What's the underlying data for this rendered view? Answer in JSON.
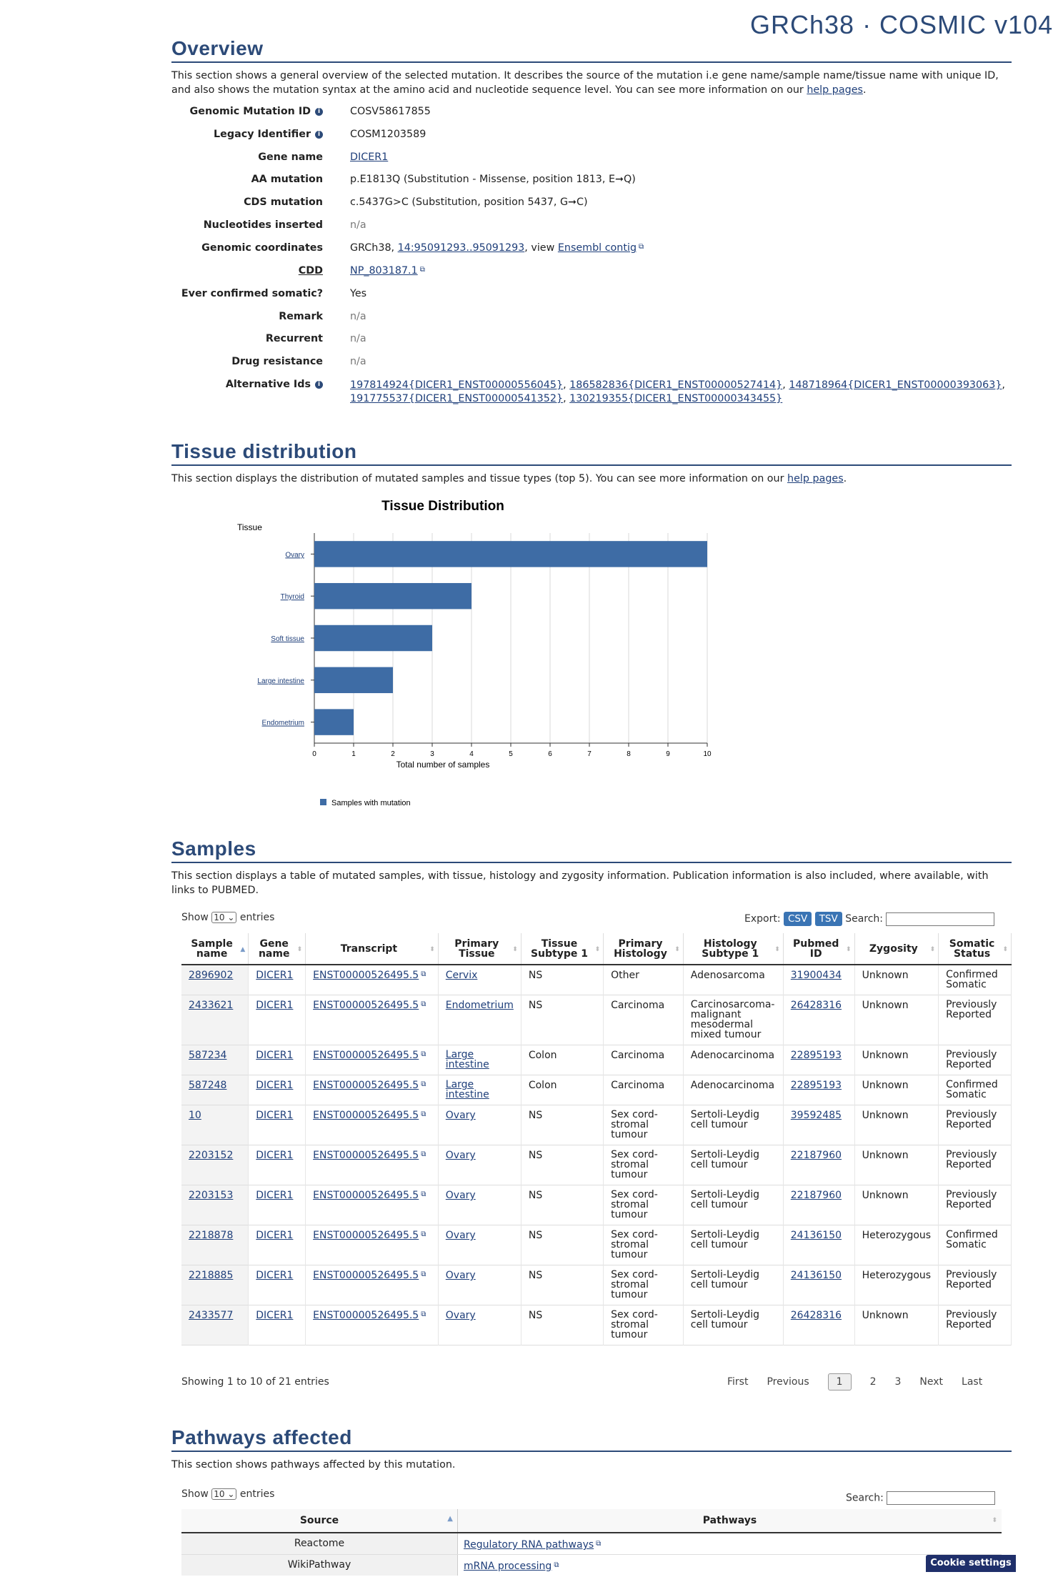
{
  "header": {
    "build": "GRCh38 · COSMIC v104"
  },
  "overview": {
    "title": "Overview",
    "description_pre": "This section shows a general overview of the selected mutation. It describes the source of the mutation i.e gene name/sample name/tissue name with unique ID, and also shows the mutation syntax at the amino acid and nucleotide sequence level. You can see more information on our ",
    "description_link": "help pages",
    "description_post": ".",
    "genomic_mutation_id": {
      "label": "Genomic Mutation ID",
      "value": "COSV58617855"
    },
    "legacy_identifier": {
      "label": "Legacy Identifier",
      "value": "COSM1203589"
    },
    "gene_name": {
      "label": "Gene name",
      "value": "DICER1"
    },
    "aa_mutation": {
      "label": "AA mutation",
      "value": "p.E1813Q (Substitution - Missense, position 1813, E➞Q)"
    },
    "cds_mutation": {
      "label": "CDS mutation",
      "value": "c.5437G>C (Substitution, position 5437, G➞C)"
    },
    "nucleotides_inserted": {
      "label": "Nucleotides inserted",
      "value": "n/a"
    },
    "genomic_coordinates": {
      "label": "Genomic coordinates",
      "prefix": "GRCh38, ",
      "coord_link": "14:95091293..95091293",
      "middle": ", view ",
      "ensembl_link": "Ensembl contig"
    },
    "cdd": {
      "label": "CDD",
      "value": "NP_803187.1"
    },
    "ever_confirmed_somatic": {
      "label": "Ever confirmed somatic?",
      "value": "Yes"
    },
    "remark": {
      "label": "Remark",
      "value": "n/a"
    },
    "recurrent": {
      "label": "Recurrent",
      "value": "n/a"
    },
    "drug_resistance": {
      "label": "Drug resistance",
      "value": "n/a"
    },
    "alternative_ids": {
      "label": "Alternative Ids",
      "ids": [
        "197814924{DICER1_ENST00000556045}",
        "186582836{DICER1_ENST00000527414}",
        "148718964{DICER1_ENST00000393063}",
        "191775537{DICER1_ENST00000541352}",
        "130219355{DICER1_ENST00000343455}"
      ]
    }
  },
  "tissue": {
    "title": "Tissue distribution",
    "description_pre": "This section displays the distribution of mutated samples and tissue types (top 5). You can see more information on our ",
    "description_link": "help pages",
    "description_post": "."
  },
  "chart_data": {
    "type": "bar",
    "orientation": "horizontal",
    "title": "Tissue Distribution",
    "ylabel": "Tissue",
    "xlabel": "Total number of samples",
    "categories": [
      "Ovary",
      "Thyroid",
      "Soft tissue",
      "Large intestine",
      "Endometrium"
    ],
    "series": [
      {
        "name": "Samples with mutation",
        "values": [
          10,
          4,
          3,
          2,
          1
        ]
      }
    ],
    "xlim": [
      0,
      10
    ],
    "xticks": [
      "0",
      "1",
      "2",
      "3",
      "4",
      "5",
      "6",
      "7",
      "8",
      "9",
      "10"
    ],
    "grid": true,
    "legend": "bottom-left",
    "bar_color": "#3e6ca5"
  },
  "samples": {
    "title": "Samples",
    "description": "This section displays a table of mutated samples, with tissue, histology and zygosity information. Publication information is also included, where available, with links to PUBMED.",
    "show_label": "Show",
    "entries_label": "entries",
    "page_size": "10",
    "export_label": "Export:",
    "csv_label": "CSV",
    "tsv_label": "TSV",
    "search_label": "Search:",
    "columns": [
      [
        "Sample",
        "name"
      ],
      [
        "Gene",
        "name"
      ],
      [
        "Transcript"
      ],
      [
        "Primary",
        "Tissue"
      ],
      [
        "Tissue",
        "Subtype 1"
      ],
      [
        "Primary",
        "Histology"
      ],
      [
        "Histology",
        "Subtype 1"
      ],
      [
        "Pubmed",
        "ID"
      ],
      [
        "Zygosity"
      ],
      [
        "Somatic",
        "Status"
      ]
    ],
    "rows": [
      {
        "sample": "2896902",
        "gene": "DICER1",
        "transcript": "ENST00000526495.5",
        "tissue": [
          "Cervix"
        ],
        "subtype": "NS",
        "histology": [
          "Other"
        ],
        "hist_subtype": [
          "Adenosarcoma"
        ],
        "pubmed": "31900434",
        "zygosity": "Unknown",
        "status": [
          "Confirmed",
          "Somatic"
        ]
      },
      {
        "sample": "2433621",
        "gene": "DICER1",
        "transcript": "ENST00000526495.5",
        "tissue": [
          "Endometrium"
        ],
        "subtype": "NS",
        "histology": [
          "Carcinoma"
        ],
        "hist_subtype": [
          "Carcinosarcoma-",
          "malignant",
          "mesodermal",
          "mixed tumour"
        ],
        "pubmed": "26428316",
        "zygosity": "Unknown",
        "status": [
          "Previously",
          "Reported"
        ]
      },
      {
        "sample": "587234",
        "gene": "DICER1",
        "transcript": "ENST00000526495.5",
        "tissue": [
          "Large",
          "intestine"
        ],
        "subtype": "Colon",
        "histology": [
          "Carcinoma"
        ],
        "hist_subtype": [
          "Adenocarcinoma"
        ],
        "pubmed": "22895193",
        "zygosity": "Unknown",
        "status": [
          "Previously",
          "Reported"
        ]
      },
      {
        "sample": "587248",
        "gene": "DICER1",
        "transcript": "ENST00000526495.5",
        "tissue": [
          "Large",
          "intestine"
        ],
        "subtype": "Colon",
        "histology": [
          "Carcinoma"
        ],
        "hist_subtype": [
          "Adenocarcinoma"
        ],
        "pubmed": "22895193",
        "zygosity": "Unknown",
        "status": [
          "Confirmed",
          "Somatic"
        ]
      },
      {
        "sample": "10",
        "gene": "DICER1",
        "transcript": "ENST00000526495.5",
        "tissue": [
          "Ovary"
        ],
        "subtype": "NS",
        "histology": [
          "Sex cord-",
          "stromal",
          "tumour"
        ],
        "hist_subtype": [
          "Sertoli-Leydig",
          "cell tumour"
        ],
        "pubmed": "39592485",
        "zygosity": "Unknown",
        "status": [
          "Previously",
          "Reported"
        ]
      },
      {
        "sample": "2203152",
        "gene": "DICER1",
        "transcript": "ENST00000526495.5",
        "tissue": [
          "Ovary"
        ],
        "subtype": "NS",
        "histology": [
          "Sex cord-",
          "stromal",
          "tumour"
        ],
        "hist_subtype": [
          "Sertoli-Leydig",
          "cell tumour"
        ],
        "pubmed": "22187960",
        "zygosity": "Unknown",
        "status": [
          "Previously",
          "Reported"
        ]
      },
      {
        "sample": "2203153",
        "gene": "DICER1",
        "transcript": "ENST00000526495.5",
        "tissue": [
          "Ovary"
        ],
        "subtype": "NS",
        "histology": [
          "Sex cord-",
          "stromal",
          "tumour"
        ],
        "hist_subtype": [
          "Sertoli-Leydig",
          "cell tumour"
        ],
        "pubmed": "22187960",
        "zygosity": "Unknown",
        "status": [
          "Previously",
          "Reported"
        ]
      },
      {
        "sample": "2218878",
        "gene": "DICER1",
        "transcript": "ENST00000526495.5",
        "tissue": [
          "Ovary"
        ],
        "subtype": "NS",
        "histology": [
          "Sex cord-",
          "stromal",
          "tumour"
        ],
        "hist_subtype": [
          "Sertoli-Leydig",
          "cell tumour"
        ],
        "pubmed": "24136150",
        "zygosity": "Heterozygous",
        "status": [
          "Confirmed",
          "Somatic"
        ]
      },
      {
        "sample": "2218885",
        "gene": "DICER1",
        "transcript": "ENST00000526495.5",
        "tissue": [
          "Ovary"
        ],
        "subtype": "NS",
        "histology": [
          "Sex cord-",
          "stromal",
          "tumour"
        ],
        "hist_subtype": [
          "Sertoli-Leydig",
          "cell tumour"
        ],
        "pubmed": "24136150",
        "zygosity": "Heterozygous",
        "status": [
          "Previously",
          "Reported"
        ]
      },
      {
        "sample": "2433577",
        "gene": "DICER1",
        "transcript": "ENST00000526495.5",
        "tissue": [
          "Ovary"
        ],
        "subtype": "NS",
        "histology": [
          "Sex cord-",
          "stromal",
          "tumour"
        ],
        "hist_subtype": [
          "Sertoli-Leydig",
          "cell tumour"
        ],
        "pubmed": "26428316",
        "zygosity": "Unknown",
        "status": [
          "Previously",
          "Reported"
        ]
      }
    ],
    "info": "Showing 1 to 10 of 21 entries",
    "pager": {
      "first": "First",
      "previous": "Previous",
      "pages": [
        "1",
        "2",
        "3"
      ],
      "current": "1",
      "next": "Next",
      "last": "Last"
    }
  },
  "pathways": {
    "title": "Pathways affected",
    "description": "This section shows pathways affected by this mutation.",
    "show_label": "Show",
    "entries_label": "entries",
    "page_size": "10",
    "search_label": "Search:",
    "columns": [
      "Source",
      "Pathways"
    ],
    "rows": [
      {
        "source": "Reactome",
        "pathway": "Regulatory RNA pathways"
      },
      {
        "source": "WikiPathway",
        "pathway": "mRNA processing"
      }
    ]
  },
  "cookie": {
    "label": "Cookie settings"
  }
}
